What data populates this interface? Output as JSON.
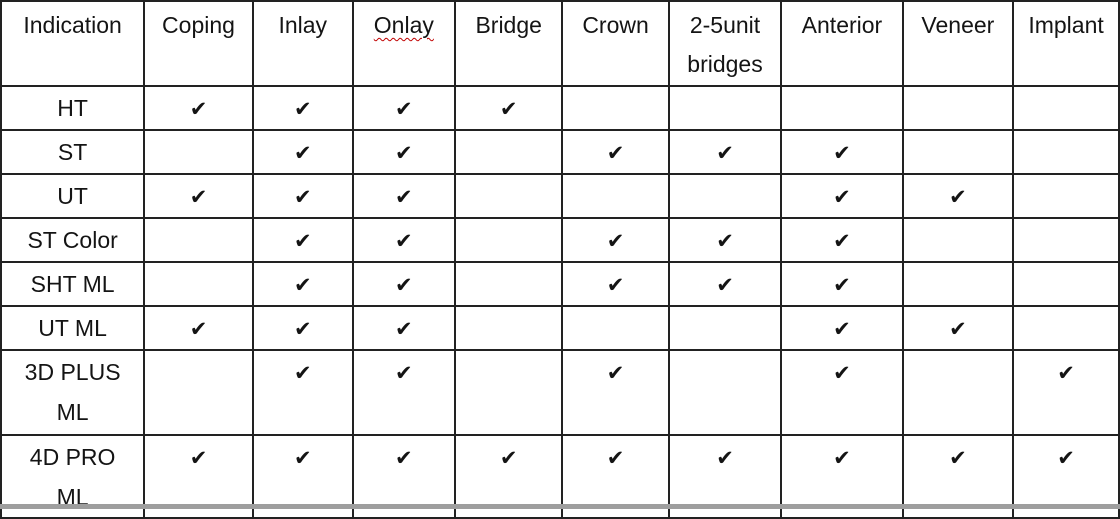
{
  "check_symbol": "✔",
  "colors": {
    "border": "#222222",
    "text": "#141414",
    "background": "#ffffff",
    "spellcheck_underline": "#c00000",
    "bottom_edge": "#9e9e9e"
  },
  "table": {
    "columns": [
      {
        "id": "indication",
        "label": "Indication",
        "spellcheck_underline": false
      },
      {
        "id": "coping",
        "label": "Coping",
        "spellcheck_underline": false
      },
      {
        "id": "inlay",
        "label": "Inlay",
        "spellcheck_underline": false
      },
      {
        "id": "onlay",
        "label": "Onlay",
        "spellcheck_underline": true
      },
      {
        "id": "bridge",
        "label": "Bridge",
        "spellcheck_underline": false
      },
      {
        "id": "crown",
        "label": "Crown",
        "spellcheck_underline": false
      },
      {
        "id": "2-5unit-bridges",
        "label": "2-5unit\nbridges",
        "spellcheck_underline": false
      },
      {
        "id": "anterior",
        "label": "Anterior",
        "spellcheck_underline": false
      },
      {
        "id": "veneer",
        "label": "Veneer",
        "spellcheck_underline": false
      },
      {
        "id": "implant",
        "label": "Implant",
        "spellcheck_underline": false
      }
    ],
    "rows": [
      {
        "id": "ht",
        "label": "HT",
        "checks": [
          true,
          true,
          true,
          true,
          false,
          false,
          false,
          false,
          false
        ]
      },
      {
        "id": "st",
        "label": "ST",
        "checks": [
          false,
          true,
          true,
          false,
          true,
          true,
          true,
          false,
          false
        ]
      },
      {
        "id": "ut",
        "label": "UT",
        "checks": [
          true,
          true,
          true,
          false,
          false,
          false,
          true,
          true,
          false
        ]
      },
      {
        "id": "st-color",
        "label": "ST Color",
        "checks": [
          false,
          true,
          true,
          false,
          true,
          true,
          true,
          false,
          false
        ]
      },
      {
        "id": "sht-ml",
        "label": "SHT ML",
        "checks": [
          false,
          true,
          true,
          false,
          true,
          true,
          true,
          false,
          false
        ]
      },
      {
        "id": "ut-ml",
        "label": "UT ML",
        "checks": [
          true,
          true,
          true,
          false,
          false,
          false,
          true,
          true,
          false
        ]
      },
      {
        "id": "3d-plus-ml",
        "label": "3D PLUS\nML",
        "checks": [
          false,
          true,
          true,
          false,
          true,
          false,
          true,
          false,
          true
        ]
      },
      {
        "id": "4d-pro-ml",
        "label": "4D PRO\nML",
        "checks": [
          true,
          true,
          true,
          true,
          true,
          true,
          true,
          true,
          true
        ]
      }
    ]
  }
}
